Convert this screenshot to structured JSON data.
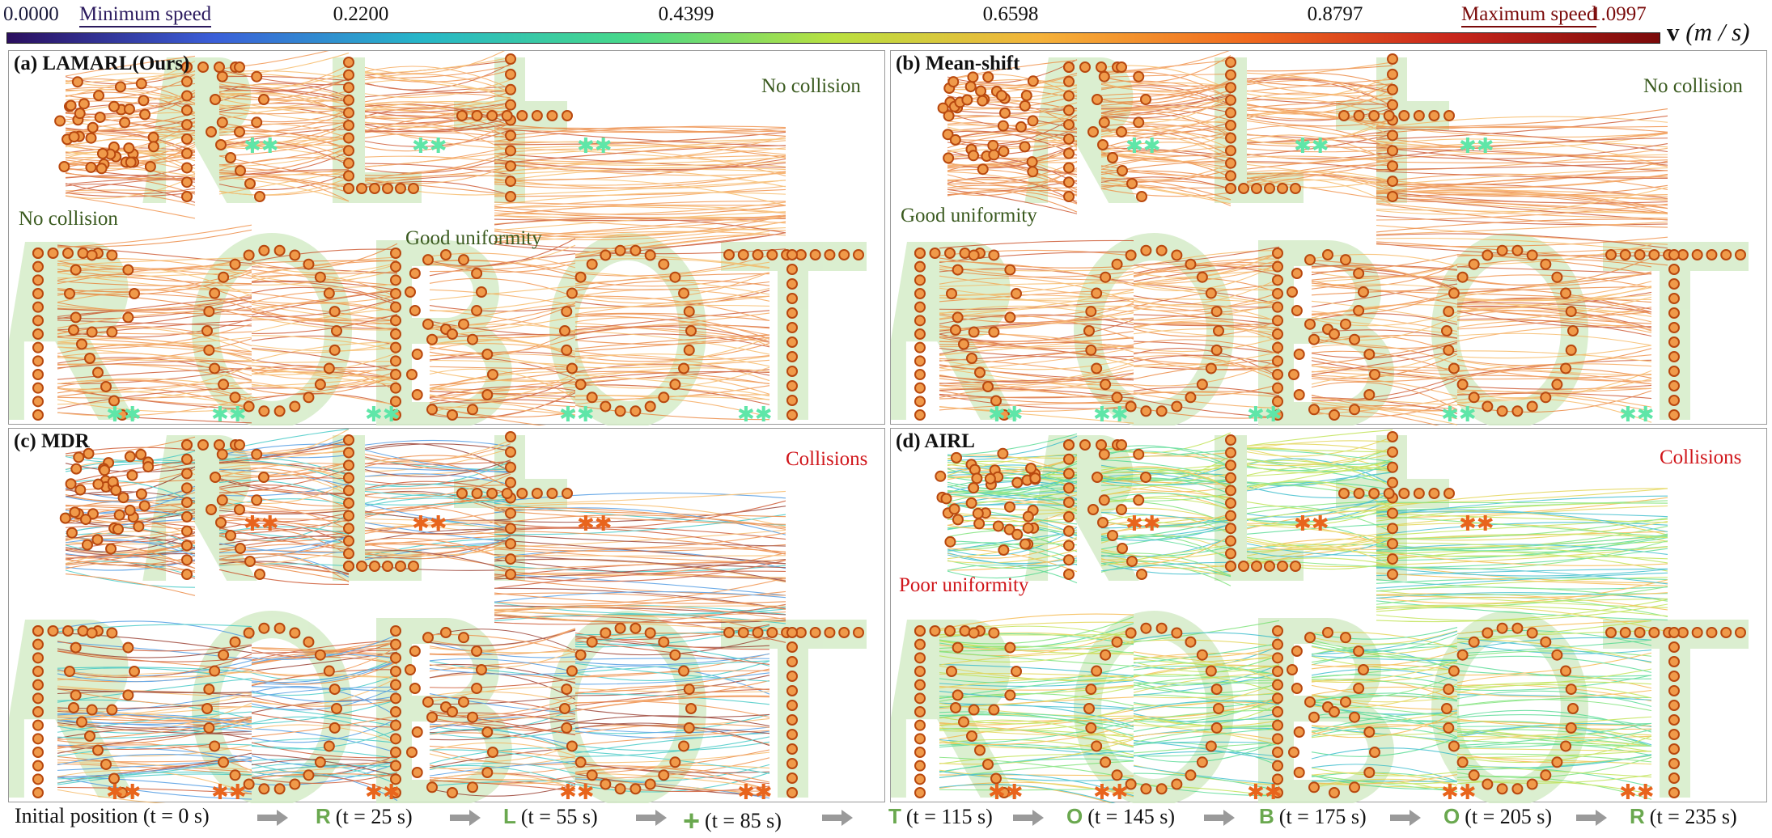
{
  "colorbar": {
    "min_label": "0.0000",
    "min_text": "Minimum speed",
    "ticks": [
      "0.2200",
      "0.4399",
      "0.6598",
      "0.8797"
    ],
    "max_text": "Maximum speed",
    "max_label": "1.0997",
    "unit_var": "v",
    "unit": "(m / s)",
    "colors": [
      "#2b0f5e",
      "#3b5fd8",
      "#27b6c8",
      "#47d88a",
      "#b9e040",
      "#f5b23a",
      "#f06a1e",
      "#c8261c",
      "#7a0a0a"
    ]
  },
  "panels": {
    "a": {
      "title": "(a) LAMARL(Ours)",
      "annotations": [
        "No collision",
        "No collision",
        "Good uniformity"
      ]
    },
    "b": {
      "title": "(b) Mean-shift",
      "annotations": [
        "No collision",
        "Good uniformity"
      ]
    },
    "c": {
      "title": "(c) MDR",
      "annotations": [
        "Collisions"
      ]
    },
    "d": {
      "title": "(d) AIRL",
      "annotations": [
        "Collisions",
        "Poor uniformity"
      ]
    }
  },
  "shapes": {
    "top_row": [
      "R",
      "L",
      "+"
    ],
    "bottom_row": [
      "R",
      "O",
      "B",
      "O",
      "T"
    ]
  },
  "timeline": [
    {
      "letter": "",
      "text": "Initial position (t = 0 s)"
    },
    {
      "letter": "R",
      "text": "(t = 25 s)"
    },
    {
      "letter": "L",
      "text": "(t = 55 s)"
    },
    {
      "letter": "+",
      "text": "(t = 85 s)"
    },
    {
      "letter": "T",
      "text": "(t = 115 s)"
    },
    {
      "letter": "O",
      "text": "(t = 145 s)"
    },
    {
      "letter": "B",
      "text": "(t = 175 s)"
    },
    {
      "letter": "O",
      "text": "(t = 205 s)"
    },
    {
      "letter": "R",
      "text": "(t = 235 s)"
    }
  ],
  "icons": {
    "timeline_arrow": "gray-arrow-icon",
    "start_marker": "asterisk-marker-icon"
  }
}
